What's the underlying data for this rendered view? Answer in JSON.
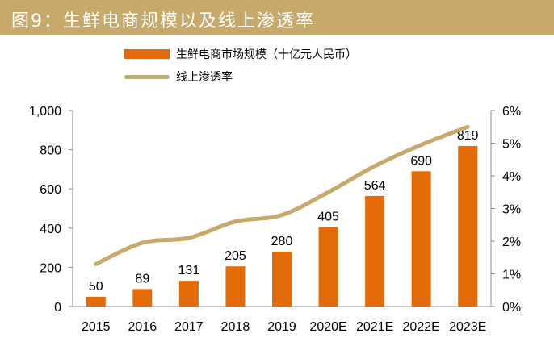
{
  "figure": {
    "title": "图9：生鲜电商规模以及线上渗透率"
  },
  "colors": {
    "header": "#c6a96b",
    "bar": "#e36c09",
    "line": "#c6a96b"
  },
  "chart_data": {
    "type": "bar",
    "categories": [
      "2015",
      "2016",
      "2017",
      "2018",
      "2019",
      "2020E",
      "2021E",
      "2022E",
      "2023E"
    ],
    "series": [
      {
        "name": "生鲜电商市场规模（十亿元人民币）",
        "type": "bar",
        "axis": "left",
        "values": [
          50,
          89,
          131,
          205,
          280,
          405,
          564,
          690,
          819
        ]
      },
      {
        "name": "线上渗透率",
        "type": "line",
        "axis": "right",
        "values": [
          1.3,
          1.95,
          2.1,
          2.6,
          2.8,
          3.5,
          4.3,
          4.95,
          5.5
        ]
      }
    ],
    "data_labels": [
      "50",
      "89",
      "131",
      "205",
      "280",
      "405",
      "564",
      "690",
      "819"
    ],
    "y_left": {
      "min": 0,
      "max": 1000,
      "ticks": [
        "0",
        "200",
        "400",
        "600",
        "800",
        "1,000"
      ]
    },
    "y_right": {
      "min": 0,
      "max": 6,
      "ticks": [
        "0%",
        "1%",
        "2%",
        "3%",
        "4%",
        "5%",
        "6%"
      ]
    },
    "legend_position": "top",
    "grid": false
  }
}
